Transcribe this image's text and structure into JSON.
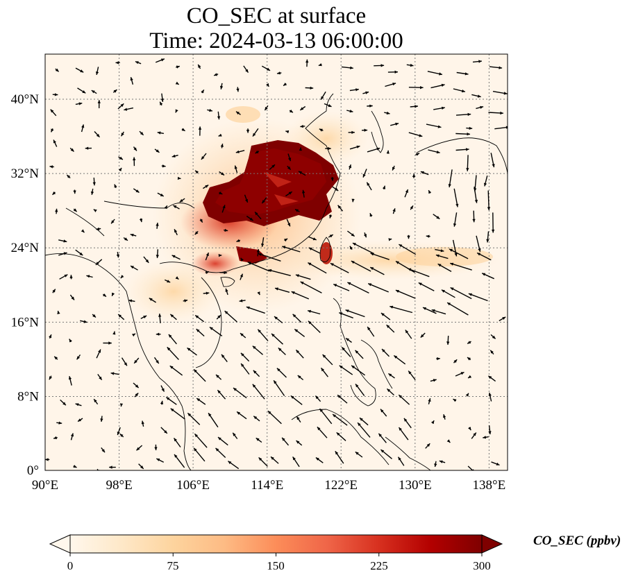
{
  "title": {
    "line1": "CO_SEC at surface",
    "line2": "Time: 2024-03-13 06:00:00"
  },
  "map": {
    "projection": "PlateCarree",
    "lon_range": [
      90,
      140
    ],
    "lat_range": [
      0,
      44
    ],
    "gridlines": "dotted",
    "lon_ticks": [
      {
        "value": 90,
        "label": "90°E"
      },
      {
        "value": 98,
        "label": "98°E"
      },
      {
        "value": 106,
        "label": "106°E"
      },
      {
        "value": 114,
        "label": "114°E"
      },
      {
        "value": 122,
        "label": "122°E"
      },
      {
        "value": 130,
        "label": "130°E"
      },
      {
        "value": 138,
        "label": "138°E"
      }
    ],
    "lat_ticks": [
      {
        "value": 0,
        "label": "0°"
      },
      {
        "value": 8,
        "label": "8°N"
      },
      {
        "value": 16,
        "label": "16°N"
      },
      {
        "value": 24,
        "label": "24°N"
      },
      {
        "value": 32,
        "label": "32°N"
      },
      {
        "value": 40,
        "label": "40°N"
      }
    ]
  },
  "colorbar": {
    "title": "CO_SEC (ppbv)",
    "colormap": "OrRd",
    "range": [
      0,
      300
    ],
    "extend": "both",
    "ticks": [
      "0",
      "75",
      "150",
      "225",
      "300"
    ],
    "colors": [
      "#fff7ec",
      "#fee8c8",
      "#fdd49e",
      "#fdbb84",
      "#fc8d59",
      "#ef6548",
      "#d7301f",
      "#b30000",
      "#7f0000"
    ]
  }
}
